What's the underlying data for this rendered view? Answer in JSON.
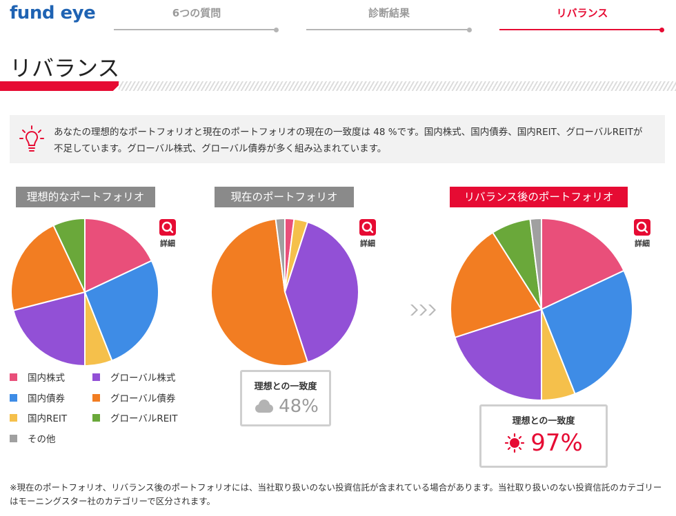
{
  "header": {
    "logo_text_before": "fund",
    "logo_text_after": "eye",
    "steps": [
      {
        "label": "6つの質問",
        "active": false
      },
      {
        "label": "診断結果",
        "active": false
      },
      {
        "label": "リバランス",
        "active": true
      }
    ]
  },
  "page_title": "リバランス",
  "message": {
    "icon": "lightbulb-icon",
    "text": "あなたの理想的なポートフォリオと現在のポートフォリオの現在の一致度は 48 %です。国内株式、国内債券、国内REIT、グローバルREITが不足しています。グローバル株式、グローバル債券が多く組み込まれています。"
  },
  "colors": {
    "accent": "#e60b33",
    "domestic_stock": "#e94f7a",
    "domestic_bond": "#3e8ce6",
    "domestic_reit": "#f5c04b",
    "global_stock": "#9250d6",
    "global_bond": "#f27d22",
    "global_reit": "#6aa83a",
    "other": "#a0a0a0"
  },
  "detail_label": "詳細",
  "legend": [
    {
      "label": "国内株式",
      "color": "#e94f7a"
    },
    {
      "label": "グローバル株式",
      "color": "#9250d6"
    },
    {
      "label": "国内債券",
      "color": "#3e8ce6"
    },
    {
      "label": "グローバル債券",
      "color": "#f27d22"
    },
    {
      "label": "国内REIT",
      "color": "#f5c04b"
    },
    {
      "label": "グローバルREIT",
      "color": "#6aa83a"
    },
    {
      "label": "その他",
      "color": "#a0a0a0"
    }
  ],
  "portfolios": {
    "ideal": {
      "label": "理想的なポートフォリオ"
    },
    "current": {
      "label": "現在のポートフォリオ",
      "match_title": "理想との一致度",
      "match_value": "48%",
      "match_icon": "cloud-icon"
    },
    "rebalanced": {
      "label": "リバランス後のポートフォリオ",
      "match_title": "理想との一致度",
      "match_value": "97%",
      "match_icon": "sun-icon"
    }
  },
  "chart_data": [
    {
      "type": "pie",
      "title": "理想的なポートフォリオ",
      "categories": [
        "国内株式",
        "国内債券",
        "国内REIT",
        "グローバル株式",
        "グローバル債券",
        "グローバルREIT"
      ],
      "values": [
        18,
        26,
        6,
        21,
        22,
        7
      ],
      "colors": [
        "#e94f7a",
        "#3e8ce6",
        "#f5c04b",
        "#9250d6",
        "#f27d22",
        "#6aa83a"
      ]
    },
    {
      "type": "pie",
      "title": "現在のポートフォリオ",
      "categories": [
        "国内株式",
        "国内REIT",
        "グローバル株式",
        "グローバル債券",
        "その他"
      ],
      "values": [
        2,
        3,
        40,
        53,
        2
      ],
      "colors": [
        "#e94f7a",
        "#f5c04b",
        "#9250d6",
        "#f27d22",
        "#a0a0a0"
      ]
    },
    {
      "type": "pie",
      "title": "リバランス後のポートフォリオ",
      "categories": [
        "国内株式",
        "国内債券",
        "国内REIT",
        "グローバル株式",
        "グローバル債券",
        "グローバルREIT",
        "その他"
      ],
      "values": [
        18,
        26,
        6,
        20,
        21,
        7,
        2
      ],
      "colors": [
        "#e94f7a",
        "#3e8ce6",
        "#f5c04b",
        "#9250d6",
        "#f27d22",
        "#6aa83a",
        "#a0a0a0"
      ]
    }
  ],
  "footnote": "※現在のポートフォリオ、リバランス後のポートフォリオには、当社取り扱いのない投資信託が含まれている場合があります。当社取り扱いのない投資信託のカテゴリーはモーニングスター社のカテゴリーで区分されます。"
}
